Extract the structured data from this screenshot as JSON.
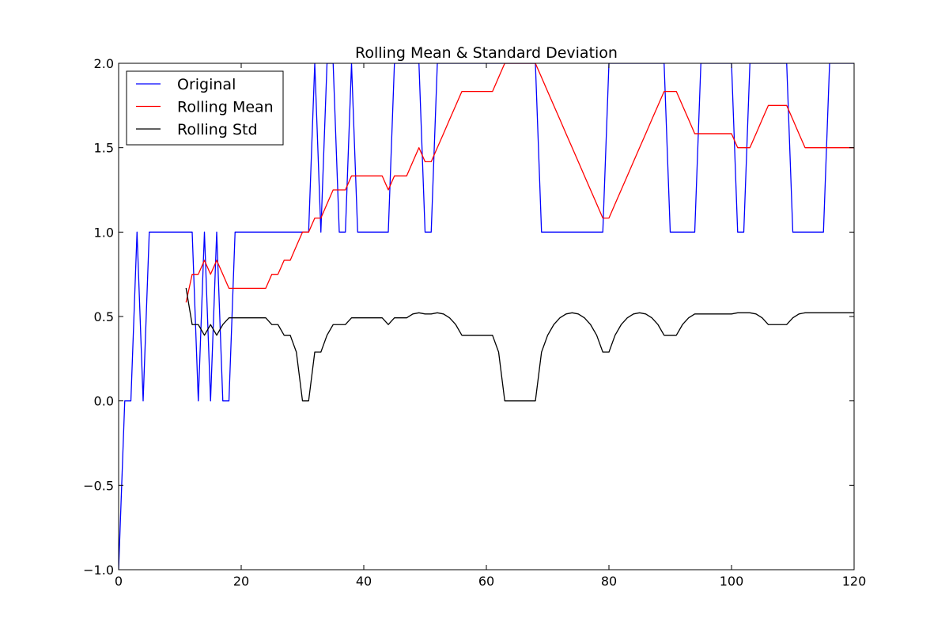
{
  "chart_data": {
    "type": "line",
    "title": "Rolling Mean & Standard Deviation",
    "xlabel": "",
    "ylabel": "",
    "xlim": [
      0,
      120
    ],
    "ylim": [
      -1.0,
      2.0
    ],
    "xticks": [
      0,
      20,
      40,
      60,
      80,
      100,
      120
    ],
    "xtick_labels": [
      "0",
      "20",
      "40",
      "60",
      "80",
      "100",
      "120"
    ],
    "yticks": [
      -1.0,
      -0.5,
      0.0,
      0.5,
      1.0,
      1.5,
      2.0
    ],
    "ytick_labels": [
      "−1.0",
      "−0.5",
      "0.0",
      "0.5",
      "1.0",
      "1.5",
      "2.0"
    ],
    "grid": false,
    "legend_position": "top-left",
    "series": [
      {
        "name": "Original",
        "color": "#0000ff",
        "x": [
          0,
          1,
          2,
          3,
          4,
          5,
          6,
          7,
          8,
          9,
          10,
          11,
          12,
          13,
          14,
          15,
          16,
          17,
          18,
          19,
          20,
          21,
          22,
          23,
          24,
          25,
          26,
          27,
          28,
          29,
          30,
          31,
          32,
          33,
          34,
          35,
          36,
          37,
          38,
          39,
          40,
          41,
          42,
          43,
          44,
          45,
          46,
          47,
          48,
          49,
          50,
          51,
          52,
          53,
          54,
          55,
          56,
          57,
          58,
          59,
          60,
          61,
          62,
          63,
          64,
          65,
          66,
          67,
          68,
          69,
          70,
          71,
          72,
          73,
          74,
          75,
          76,
          77,
          78,
          79,
          80,
          81,
          82,
          83,
          84,
          85,
          86,
          87,
          88,
          89,
          90,
          91,
          92,
          93,
          94,
          95,
          96,
          97,
          98,
          99,
          100,
          101,
          102,
          103,
          104,
          105,
          106,
          107,
          108,
          109,
          110,
          111,
          112,
          113,
          114,
          115,
          116,
          117,
          118,
          119,
          120
        ],
        "values": [
          -1,
          0,
          0,
          1,
          0,
          1,
          1,
          1,
          1,
          1,
          1,
          1,
          1,
          0,
          1,
          0,
          1,
          0,
          0,
          1,
          1,
          1,
          1,
          1,
          1,
          1,
          1,
          1,
          1,
          1,
          1,
          1,
          2,
          1,
          2,
          2,
          1,
          1,
          2,
          1,
          1,
          1,
          1,
          1,
          1,
          2,
          2,
          2,
          2,
          2,
          1,
          1,
          2,
          2,
          2,
          2,
          2,
          2,
          2,
          2,
          2,
          2,
          2,
          2,
          2,
          2,
          2,
          2,
          2,
          1,
          1,
          1,
          1,
          1,
          1,
          1,
          1,
          1,
          1,
          1,
          2,
          2,
          2,
          2,
          2,
          2,
          2,
          2,
          2,
          2,
          1,
          1,
          1,
          1,
          1,
          2,
          2,
          2,
          2,
          2,
          2,
          1,
          1,
          2,
          2,
          2,
          2,
          2,
          2,
          2,
          1,
          1,
          1,
          1,
          1,
          1,
          2,
          2,
          2,
          2,
          2
        ]
      },
      {
        "name": "Rolling Mean",
        "color": "#ff0000",
        "x": [
          11,
          12,
          13,
          14,
          15,
          16,
          17,
          18,
          19,
          20,
          21,
          22,
          23,
          24,
          25,
          26,
          27,
          28,
          29,
          30,
          31,
          32,
          33,
          34,
          35,
          36,
          37,
          38,
          39,
          40,
          41,
          42,
          43,
          44,
          45,
          46,
          47,
          48,
          49,
          50,
          51,
          52,
          53,
          54,
          55,
          56,
          57,
          58,
          59,
          60,
          61,
          62,
          63,
          64,
          65,
          66,
          67,
          68,
          69,
          70,
          71,
          72,
          73,
          74,
          75,
          76,
          77,
          78,
          79,
          80,
          81,
          82,
          83,
          84,
          85,
          86,
          87,
          88,
          89,
          90,
          91,
          92,
          93,
          94,
          95,
          96,
          97,
          98,
          99,
          100,
          101,
          102,
          103,
          104,
          105,
          106,
          107,
          108,
          109,
          110,
          111,
          112,
          113,
          114,
          115,
          116,
          117,
          118,
          119,
          120
        ],
        "values": [
          0.583,
          0.75,
          0.75,
          0.833,
          0.75,
          0.833,
          0.75,
          0.667,
          0.667,
          0.667,
          0.667,
          0.667,
          0.667,
          0.667,
          0.75,
          0.75,
          0.833,
          0.833,
          0.917,
          1.0,
          1.0,
          1.083,
          1.083,
          1.167,
          1.25,
          1.25,
          1.25,
          1.333,
          1.333,
          1.333,
          1.333,
          1.333,
          1.333,
          1.25,
          1.333,
          1.333,
          1.333,
          1.417,
          1.5,
          1.417,
          1.417,
          1.5,
          1.583,
          1.667,
          1.75,
          1.833,
          1.833,
          1.833,
          1.833,
          1.833,
          1.833,
          1.917,
          2.0,
          2.0,
          2.0,
          2.0,
          2.0,
          2.0,
          1.917,
          1.833,
          1.75,
          1.667,
          1.583,
          1.5,
          1.417,
          1.333,
          1.25,
          1.167,
          1.083,
          1.083,
          1.167,
          1.25,
          1.333,
          1.417,
          1.5,
          1.583,
          1.667,
          1.75,
          1.833,
          1.833,
          1.833,
          1.75,
          1.667,
          1.583,
          1.583,
          1.583,
          1.583,
          1.583,
          1.583,
          1.583,
          1.5,
          1.5,
          1.5,
          1.583,
          1.667,
          1.75,
          1.75,
          1.75,
          1.75,
          1.667,
          1.583,
          1.5,
          1.5,
          1.5,
          1.5,
          1.5,
          1.5,
          1.5,
          1.5,
          1.5
        ]
      },
      {
        "name": "Rolling Std",
        "color": "#000000",
        "x": [
          11,
          12,
          13,
          14,
          15,
          16,
          17,
          18,
          19,
          20,
          21,
          22,
          23,
          24,
          25,
          26,
          27,
          28,
          29,
          30,
          31,
          32,
          33,
          34,
          35,
          36,
          37,
          38,
          39,
          40,
          41,
          42,
          43,
          44,
          45,
          46,
          47,
          48,
          49,
          50,
          51,
          52,
          53,
          54,
          55,
          56,
          57,
          58,
          59,
          60,
          61,
          62,
          63,
          64,
          65,
          66,
          67,
          68,
          69,
          70,
          71,
          72,
          73,
          74,
          75,
          76,
          77,
          78,
          79,
          80,
          81,
          82,
          83,
          84,
          85,
          86,
          87,
          88,
          89,
          90,
          91,
          92,
          93,
          94,
          95,
          96,
          97,
          98,
          99,
          100,
          101,
          102,
          103,
          104,
          105,
          106,
          107,
          108,
          109,
          110,
          111,
          112,
          113,
          114,
          115,
          116,
          117,
          118,
          119,
          120
        ],
        "values": [
          0.669,
          0.452,
          0.452,
          0.389,
          0.452,
          0.389,
          0.452,
          0.492,
          0.492,
          0.492,
          0.492,
          0.492,
          0.492,
          0.492,
          0.452,
          0.452,
          0.389,
          0.389,
          0.289,
          0.0,
          0.0,
          0.289,
          0.289,
          0.389,
          0.452,
          0.452,
          0.452,
          0.492,
          0.492,
          0.492,
          0.492,
          0.492,
          0.492,
          0.452,
          0.492,
          0.492,
          0.492,
          0.515,
          0.522,
          0.515,
          0.515,
          0.522,
          0.515,
          0.492,
          0.452,
          0.389,
          0.389,
          0.389,
          0.389,
          0.389,
          0.389,
          0.289,
          0.0,
          0.0,
          0.0,
          0.0,
          0.0,
          0.0,
          0.289,
          0.389,
          0.452,
          0.492,
          0.515,
          0.522,
          0.515,
          0.492,
          0.452,
          0.389,
          0.289,
          0.289,
          0.389,
          0.452,
          0.492,
          0.515,
          0.522,
          0.515,
          0.492,
          0.452,
          0.389,
          0.389,
          0.389,
          0.452,
          0.492,
          0.515,
          0.515,
          0.515,
          0.515,
          0.515,
          0.515,
          0.515,
          0.522,
          0.522,
          0.522,
          0.515,
          0.492,
          0.452,
          0.452,
          0.452,
          0.452,
          0.492,
          0.515,
          0.522,
          0.522,
          0.522,
          0.522,
          0.522,
          0.522,
          0.522,
          0.522,
          0.522
        ]
      }
    ]
  }
}
